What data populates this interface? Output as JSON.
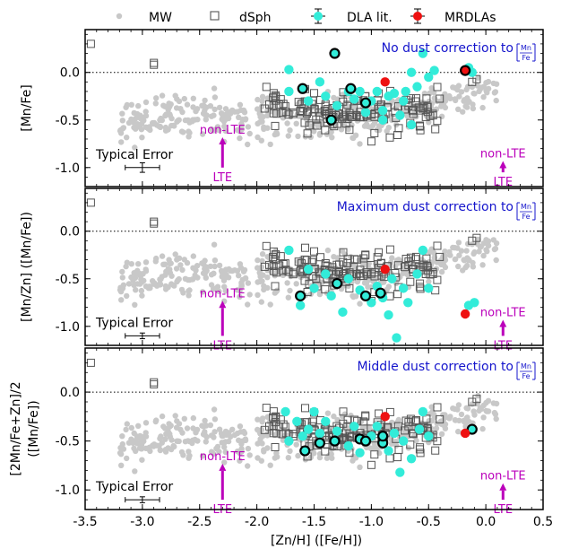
{
  "legend": {
    "items": [
      {
        "label": "MW",
        "marker": "gray-dot-icon"
      },
      {
        "label": "dSph",
        "marker": "open-square-icon"
      },
      {
        "label": "DLA lit.",
        "marker": "cyan-errorbar-dot-icon"
      },
      {
        "label": "MRDLAs",
        "marker": "red-errorbar-dot-icon"
      }
    ]
  },
  "colors": {
    "mw": "#c8c8c8",
    "dsph": "#555555",
    "dla": "#33ecd9",
    "mrdla": "#ee1111",
    "title": "#1515cc",
    "nlte": "#bb00bb"
  },
  "chart_data": {
    "type": "scatter",
    "xlabel": "[Zn/H] ([Fe/H])",
    "xlim": [
      -3.5,
      0.5
    ],
    "x_ticks": [
      "-3.5",
      "-3.0",
      "-2.5",
      "-2.0",
      "-1.5",
      "-1.0",
      "-0.5",
      "0.0",
      "0.5"
    ],
    "ylim": [
      -1.2,
      0.45
    ],
    "y_ticks": [
      "-1.0",
      "-0.5",
      "0.0"
    ],
    "panels": [
      {
        "title_text": "No dust correction to",
        "title_frac_num": "Mn",
        "title_frac_den": "Fe",
        "ylabel_lines": [
          "[Mn/Fe]"
        ],
        "typical_error_label": "Typical Error",
        "typical_error": {
          "x": -3.0,
          "y": -1.0,
          "xerr": 0.15,
          "yerr": 0.05
        },
        "nlte_left": {
          "top": "non-LTE",
          "bottom": "LTE",
          "x": -2.3,
          "from": -1.0,
          "to": -0.7
        },
        "nlte_right": {
          "top": "non-LTE",
          "bottom": "LTE",
          "x": 0.15,
          "from": -1.05,
          "to": -0.95
        },
        "dla_circled": [
          [
            -1.32,
            0.2
          ],
          [
            -1.18,
            -0.17
          ],
          [
            -1.6,
            -0.17
          ],
          [
            -1.05,
            -0.32
          ],
          [
            -1.35,
            -0.5
          ]
        ],
        "dla": [
          [
            -1.72,
            0.03
          ],
          [
            -1.72,
            -0.2
          ],
          [
            -1.55,
            -0.3
          ],
          [
            -1.45,
            -0.1
          ],
          [
            -1.4,
            -0.25
          ],
          [
            -1.3,
            -0.35
          ],
          [
            -1.2,
            -0.2
          ],
          [
            -1.15,
            -0.28
          ],
          [
            -1.1,
            -0.2
          ],
          [
            -1.05,
            -0.42
          ],
          [
            -1.0,
            -0.3
          ],
          [
            -0.95,
            -0.2
          ],
          [
            -0.9,
            -0.4
          ],
          [
            -0.85,
            -0.25
          ],
          [
            -0.8,
            -0.22
          ],
          [
            -0.75,
            -0.45
          ],
          [
            -0.7,
            -0.2
          ],
          [
            -0.65,
            -0.55
          ],
          [
            -0.6,
            -0.15
          ],
          [
            -0.55,
            0.2
          ],
          [
            -0.5,
            -0.05
          ],
          [
            -0.45,
            0.02
          ],
          [
            -0.65,
            0.0
          ],
          [
            -0.15,
            0.05
          ],
          [
            -0.12,
            0.0
          ],
          [
            -0.9,
            -0.5
          ],
          [
            -0.72,
            -0.3
          ]
        ],
        "mrdla": [
          [
            -0.88,
            -0.1
          ],
          [
            -0.18,
            0.02
          ]
        ],
        "mrdla_circled": [
          [
            -0.18,
            0.02
          ]
        ]
      },
      {
        "title_text": "Maximum dust correction to",
        "title_frac_num": "Mn",
        "title_frac_den": "Fe",
        "ylabel_lines": [
          "[Mn/Zn] ([Mn/Fe])"
        ],
        "typical_error_label": "Typical Error",
        "typical_error": {
          "x": -3.0,
          "y": -1.1,
          "xerr": 0.15,
          "yerr": 0.03
        },
        "nlte_left": {
          "top": "non-LTE",
          "bottom": "LTE",
          "x": -2.3,
          "from": -1.1,
          "to": -0.75
        },
        "nlte_right": {
          "top": "non-LTE",
          "bottom": "LTE",
          "x": 0.15,
          "from": -1.1,
          "to": -0.95
        },
        "dla_circled": [
          [
            -1.62,
            -0.68
          ],
          [
            -1.3,
            -0.55
          ],
          [
            -1.05,
            -0.68
          ],
          [
            -0.92,
            -0.65
          ]
        ],
        "dla": [
          [
            -1.72,
            -0.2
          ],
          [
            -1.62,
            -0.78
          ],
          [
            -1.55,
            -0.4
          ],
          [
            -1.5,
            -0.6
          ],
          [
            -1.4,
            -0.45
          ],
          [
            -1.35,
            -0.68
          ],
          [
            -1.25,
            -0.85
          ],
          [
            -1.2,
            -0.5
          ],
          [
            -1.1,
            -0.62
          ],
          [
            -1.0,
            -0.75
          ],
          [
            -0.95,
            -0.58
          ],
          [
            -0.9,
            -0.7
          ],
          [
            -0.85,
            -0.88
          ],
          [
            -0.82,
            -0.5
          ],
          [
            -0.78,
            -1.12
          ],
          [
            -0.72,
            -0.6
          ],
          [
            -0.68,
            -0.75
          ],
          [
            -0.6,
            -0.45
          ],
          [
            -0.55,
            -0.2
          ],
          [
            -0.5,
            -0.6
          ],
          [
            -0.15,
            -0.78
          ],
          [
            -0.1,
            -0.75
          ]
        ],
        "mrdla": [
          [
            -0.88,
            -0.4
          ],
          [
            -0.18,
            -0.87
          ]
        ],
        "mrdla_circled": []
      },
      {
        "title_text": "Middle dust correction to",
        "title_frac_num": "Mn",
        "title_frac_den": "Fe",
        "ylabel_lines": [
          "[2Mn/Fe+Zn]/2",
          "([Mn/Fe])"
        ],
        "typical_error_label": "Typical Error",
        "typical_error": {
          "x": -3.0,
          "y": -1.1,
          "xerr": 0.15,
          "yerr": 0.03
        },
        "nlte_left": {
          "top": "non-LTE",
          "bottom": "LTE",
          "x": -2.3,
          "from": -1.1,
          "to": -0.75
        },
        "nlte_right": {
          "top": "non-LTE",
          "bottom": "LTE",
          "x": 0.15,
          "from": -1.1,
          "to": -0.95
        },
        "dla_circled": [
          [
            -1.58,
            -0.6
          ],
          [
            -1.45,
            -0.52
          ],
          [
            -1.32,
            -0.5
          ],
          [
            -1.1,
            -0.48
          ],
          [
            -1.05,
            -0.5
          ],
          [
            -0.9,
            -0.52
          ],
          [
            -0.9,
            -0.45
          ],
          [
            -0.12,
            -0.38
          ]
        ],
        "dla": [
          [
            -1.75,
            -0.2
          ],
          [
            -1.72,
            -0.5
          ],
          [
            -1.65,
            -0.3
          ],
          [
            -1.6,
            -0.45
          ],
          [
            -1.55,
            -0.38
          ],
          [
            -1.5,
            -0.2
          ],
          [
            -1.45,
            -0.42
          ],
          [
            -1.4,
            -0.3
          ],
          [
            -1.3,
            -0.4
          ],
          [
            -1.2,
            -0.55
          ],
          [
            -1.15,
            -0.35
          ],
          [
            -1.1,
            -0.62
          ],
          [
            -1.0,
            -0.45
          ],
          [
            -0.95,
            -0.35
          ],
          [
            -0.85,
            -0.6
          ],
          [
            -0.8,
            -0.42
          ],
          [
            -0.75,
            -0.82
          ],
          [
            -0.72,
            -0.5
          ],
          [
            -0.65,
            -0.68
          ],
          [
            -0.58,
            -0.38
          ],
          [
            -0.55,
            -0.2
          ],
          [
            -0.5,
            -0.45
          ]
        ],
        "mrdla": [
          [
            -0.88,
            -0.25
          ],
          [
            -0.18,
            -0.42
          ]
        ],
        "mrdla_circled": []
      }
    ]
  }
}
